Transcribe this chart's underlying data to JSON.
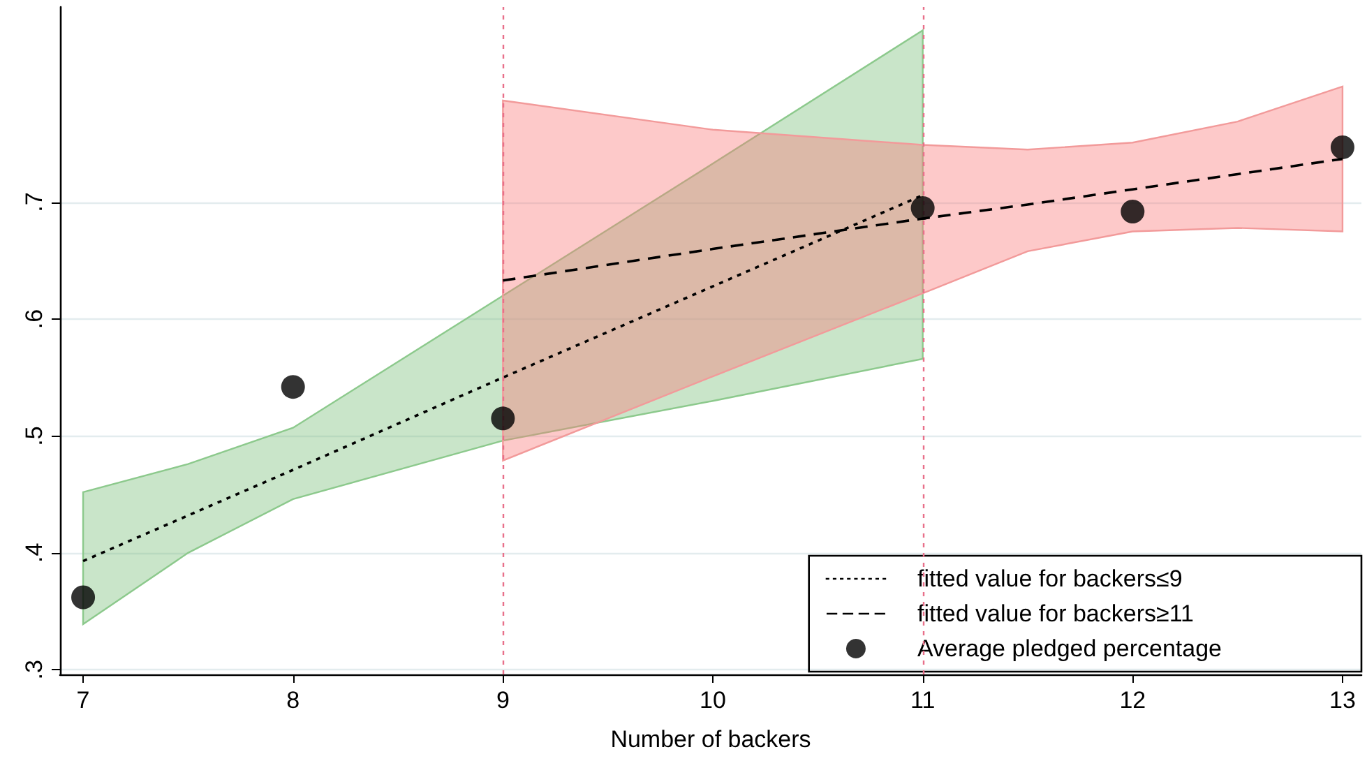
{
  "chart_data": {
    "type": "scatter",
    "xlabel": "Number of backers",
    "xlim": [
      6.89,
      13.09
    ],
    "xticks": [
      7,
      8,
      9,
      10,
      11,
      12,
      13
    ],
    "ylim": [
      0.296,
      0.867
    ],
    "yticks": [
      {
        "value": 0.3,
        "label": ".3"
      },
      {
        "value": 0.4,
        "label": ".4"
      },
      {
        "value": 0.5,
        "label": ".5"
      },
      {
        "value": 0.6,
        "label": ".6"
      },
      {
        "value": 0.7,
        "label": ".7"
      }
    ],
    "grid": "y",
    "legend": "bottom right",
    "ref_lines": [
      {
        "axis": "x",
        "value": 9,
        "color": "#e8708a",
        "line_style": "dotted"
      },
      {
        "axis": "x",
        "value": 11,
        "color": "#e8708a",
        "line_style": "dotted"
      }
    ],
    "series": [
      {
        "name": "fitted value for backers≤9",
        "type": "line",
        "color": "#000000",
        "line_style": "dotted",
        "marker": "none",
        "x": [
          7,
          7.5,
          8,
          9,
          10,
          11
        ],
        "values": [
          0.393,
          0.432,
          0.471,
          0.55,
          0.628,
          0.706
        ],
        "lower": [
          0.339,
          0.4,
          0.446,
          0.496,
          0.53,
          0.566
        ],
        "upper": [
          0.452,
          0.476,
          0.507,
          0.62,
          0.733,
          0.847
        ]
      },
      {
        "name": "fitted value for backers≥11",
        "type": "line",
        "color": "#000000",
        "line_style": "dashed",
        "marker": "none",
        "x": [
          9,
          10,
          11,
          11.5,
          12,
          12.5,
          13
        ],
        "values": [
          0.633,
          0.66,
          0.686,
          0.698,
          0.711,
          0.724,
          0.737
        ],
        "lower": [
          0.479,
          0.551,
          0.622,
          0.658,
          0.675,
          0.678,
          0.675
        ],
        "upper": [
          0.787,
          0.762,
          0.749,
          0.745,
          0.751,
          0.769,
          0.799
        ]
      },
      {
        "name": "Average pledged percentage",
        "type": "scatter",
        "color": "#000000",
        "marker": "circle",
        "x": [
          7,
          8,
          9,
          11,
          12,
          13
        ],
        "values": [
          0.362,
          0.542,
          0.515,
          0.695,
          0.692,
          0.747
        ]
      }
    ]
  }
}
